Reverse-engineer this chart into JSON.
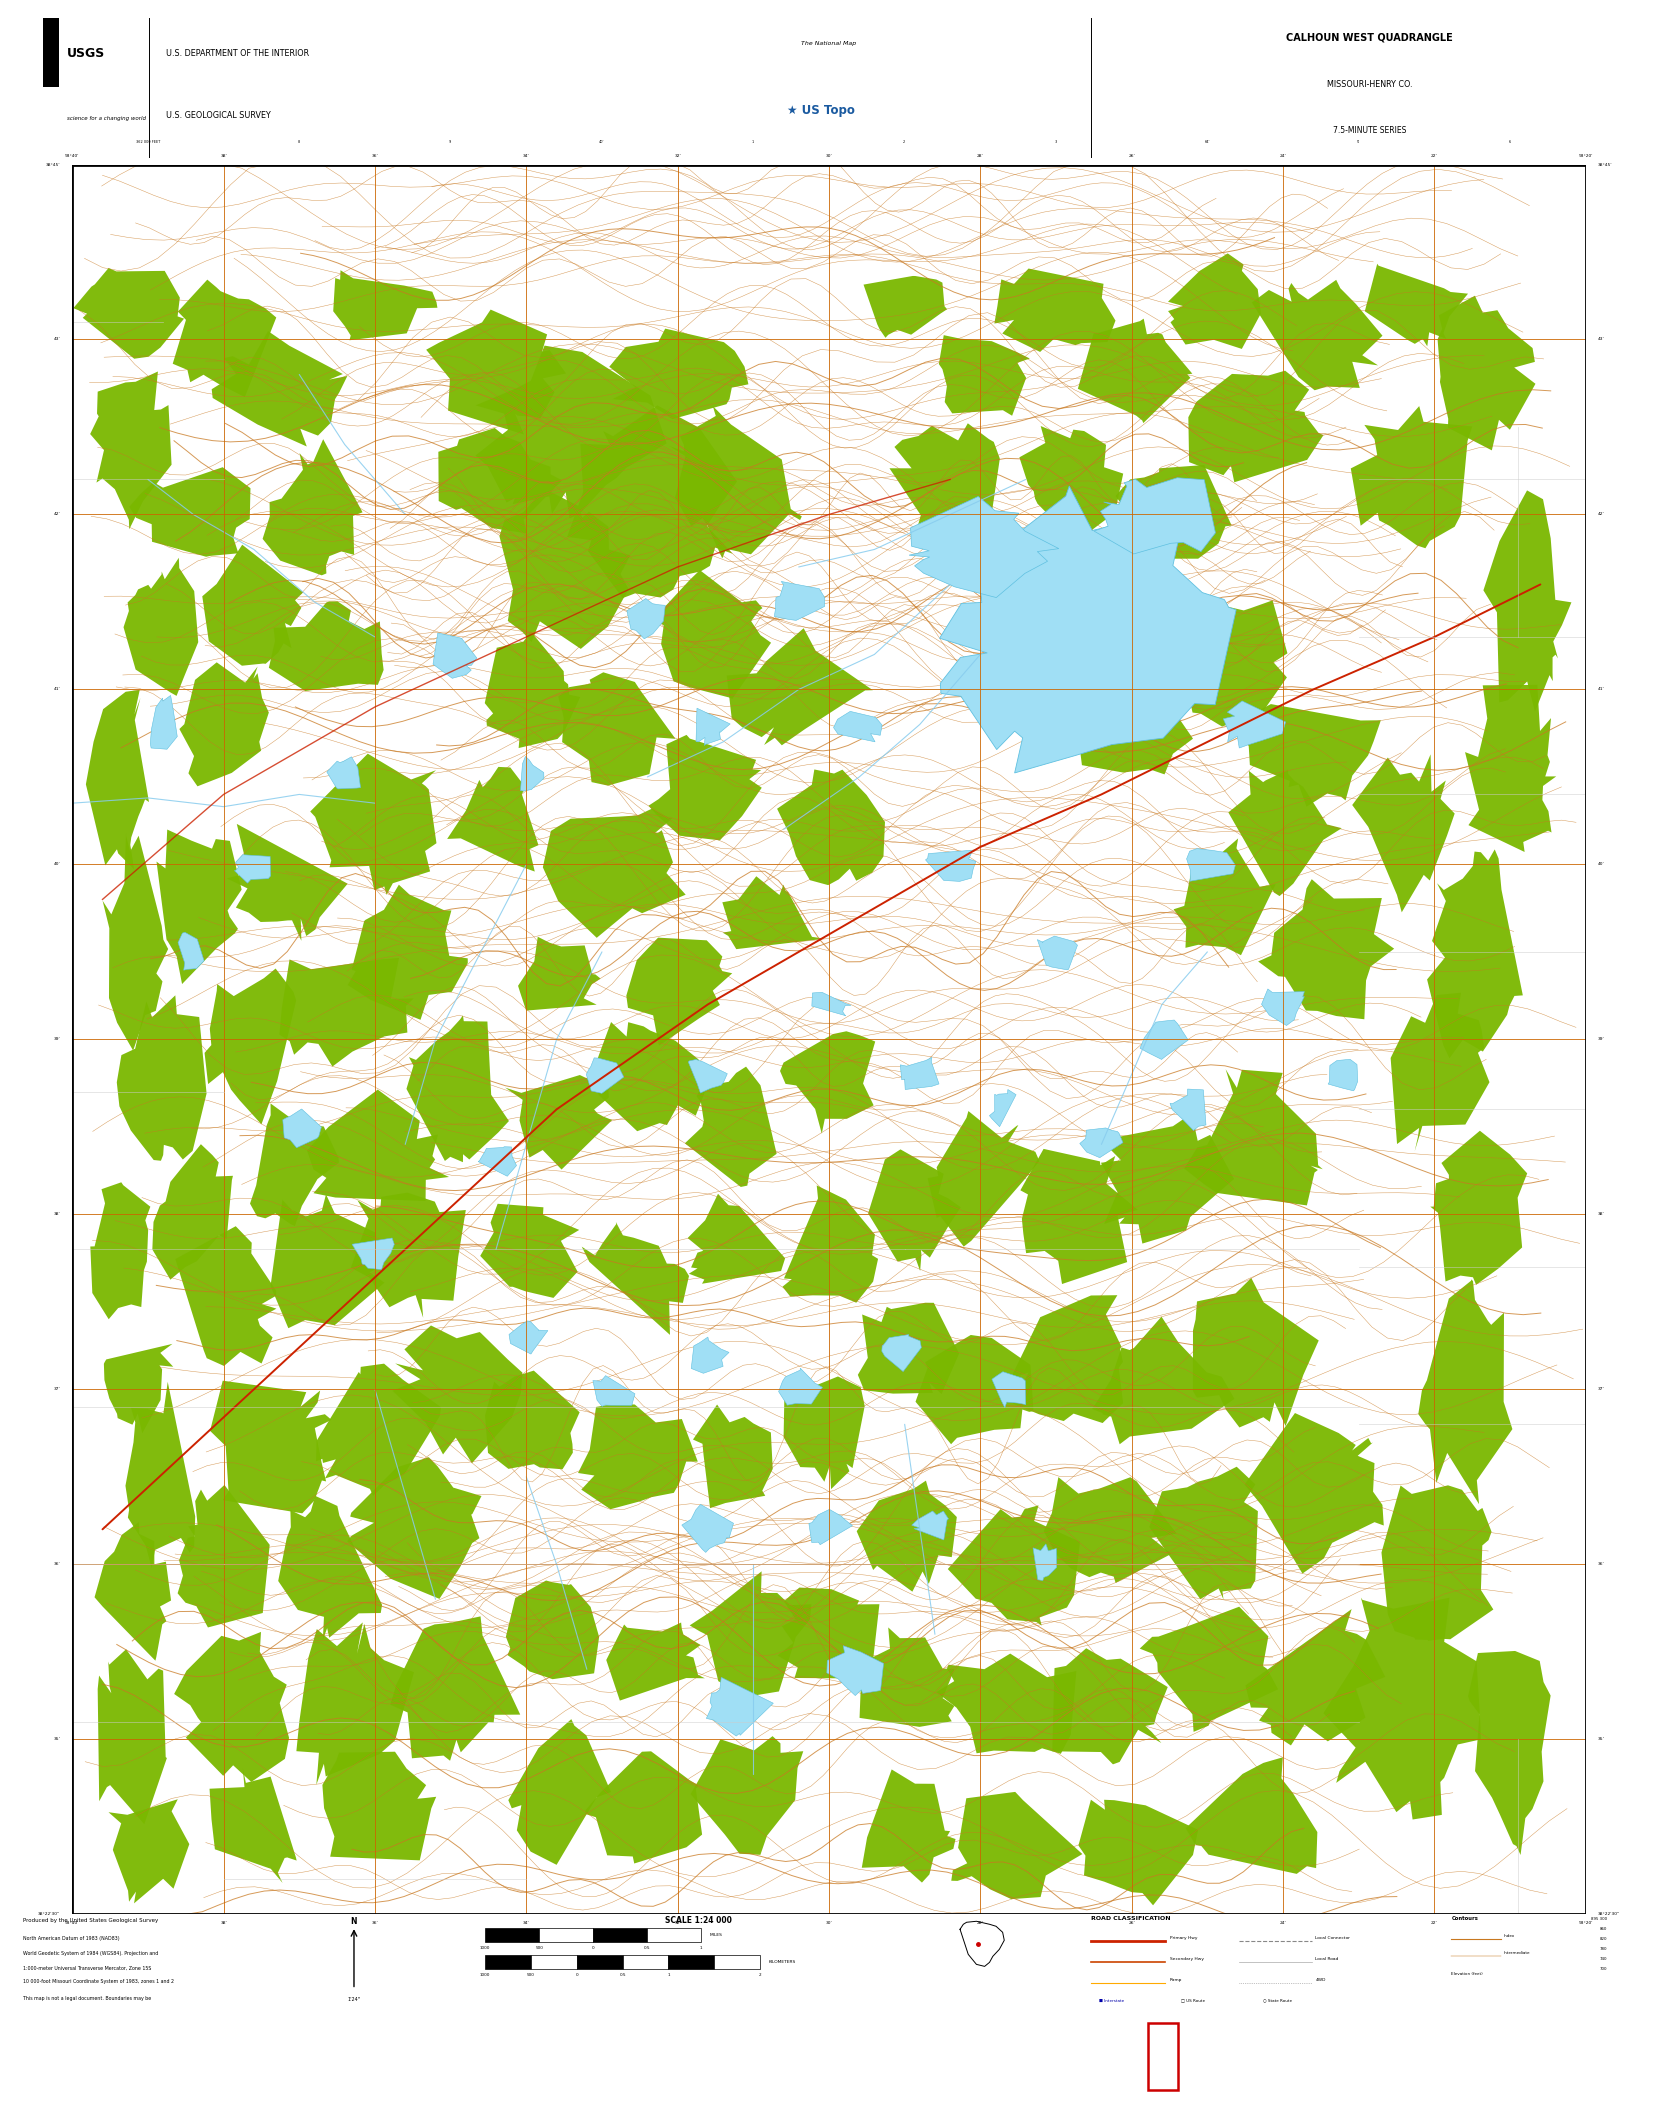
{
  "title": "CALHOUN WEST QUADRANGLE",
  "subtitle1": "MISSOURI-HENRY CO.",
  "subtitle2": "7.5-MINUTE SERIES",
  "agency1": "U.S. DEPARTMENT OF THE INTERIOR",
  "agency2": "U.S. GEOLOGICAL SURVEY",
  "map_bg_color": "#050400",
  "contour_color": "#c87820",
  "vegetation_color": "#7ab800",
  "water_color": "#a0dff5",
  "water_edge_color": "#60c0e0",
  "grid_color": "#cc6600",
  "road_primary_color": "#cc2200",
  "road_secondary_color": "#ffffff",
  "border_color": "#000000",
  "header_bg": "#ffffff",
  "footer_bg": "#ffffff",
  "black_bar_color": "#000000",
  "red_rect_color": "#cc0000",
  "scale": "SCALE 1:24 000",
  "fig_width": 16.38,
  "fig_height": 20.88,
  "dpi": 100
}
